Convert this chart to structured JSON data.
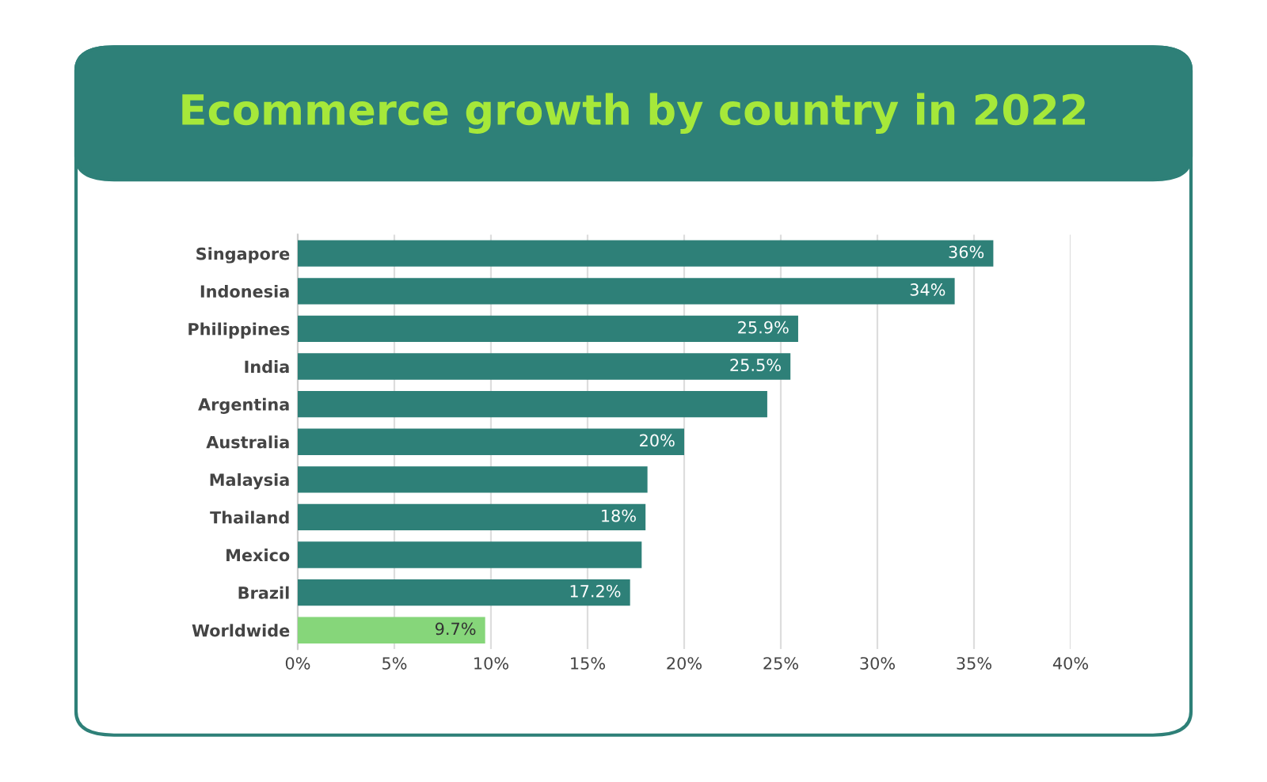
{
  "chart_data": {
    "type": "bar",
    "orientation": "horizontal",
    "title": "Ecommerce growth by country in 2022",
    "categories": [
      "Singapore",
      "Indonesia",
      "Philippines",
      "India",
      "Argentina",
      "Australia",
      "Malaysia",
      "Thailand",
      "Mexico",
      "Brazil",
      "Worldwide"
    ],
    "values": [
      36,
      34,
      25.9,
      25.5,
      24.3,
      20,
      18.1,
      18,
      17.8,
      17.2,
      9.7
    ],
    "colors": [
      "#2e8078",
      "#2e8078",
      "#2e8078",
      "#2e8078",
      "#2e8078",
      "#2e8078",
      "#2e8078",
      "#2e8078",
      "#2e8078",
      "#2e8078",
      "#86d67a"
    ],
    "value_labels": [
      "36%",
      "34%",
      "25.9%",
      "25.5%",
      null,
      "20%",
      null,
      "18%",
      null,
      "17.2%",
      "9.7%"
    ],
    "xlim": [
      0,
      40
    ],
    "xticks": [
      {
        "value": 0,
        "label": "0%"
      },
      {
        "value": 5,
        "label": "5%"
      },
      {
        "value": 10,
        "label": "10%"
      },
      {
        "value": 15,
        "label": "15%"
      },
      {
        "value": 20,
        "label": "20%"
      },
      {
        "value": 25,
        "label": "25%"
      },
      {
        "value": 30,
        "label": "30%"
      },
      {
        "value": 35,
        "label": "35%"
      },
      {
        "value": 40,
        "label": "40%"
      }
    ],
    "grid": "x",
    "legend": false
  }
}
